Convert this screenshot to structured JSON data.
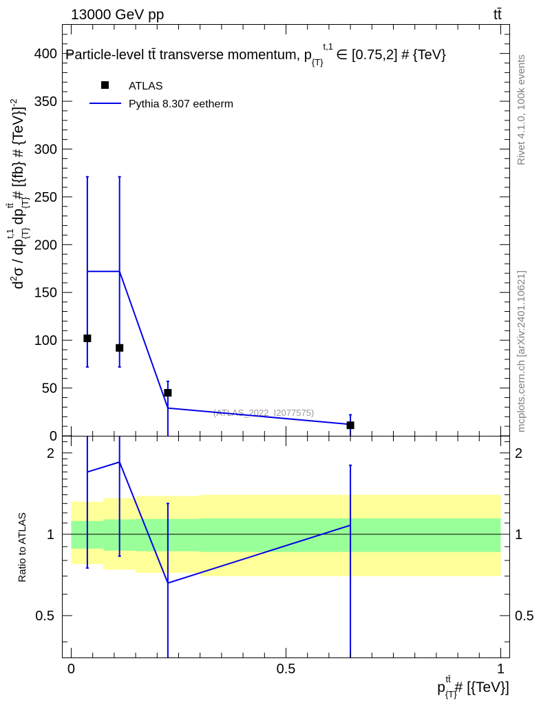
{
  "header": {
    "energy": "13000 GeV pp",
    "process": "tt̄"
  },
  "side": {
    "rivet": "Rivet 4.1.0,  100k events",
    "source": "mcplots.cern.ch [arXiv:2401.10621]"
  },
  "colors": {
    "mc": "#0000e6",
    "data": "#000000",
    "band_inner": "#99ff99",
    "band_outer": "#ffff99"
  },
  "chart_data": [
    {
      "type": "scatter",
      "title": "Particle-level tt̄ transverse momentum, p_{T}^{t,1} ∈ [0.75,2] # {TeV}",
      "title_main": "Particle-level tt̄ transverse momentum, p",
      "title_sub": "{T}",
      "title_sup": "t,1",
      "title_tail": "∈ [0.75,2] # {TeV}",
      "ylabel": "d²σ / dp_{T}^{t,1} dp_{T}^{tt̄} # [{fb} # {TeV}⁻²]",
      "ylabel_parts": {
        "d": "d",
        "two": "2",
        "sigma_dp": "σ / dp",
        "sub1": "{T}",
        "sup1": "t,1",
        "dp": " dp",
        "sub2": "{T}",
        "sup2": "tt̄",
        "tail": " # [{fb} # {TeV}]",
        "exp": "-2"
      },
      "xlim": [
        -0.02,
        1.02
      ],
      "ylim": [
        0,
        430
      ],
      "yticks": [
        "0",
        "50",
        "100",
        "150",
        "200",
        "250",
        "300",
        "350",
        "400"
      ],
      "yticks_values": [
        0,
        50,
        100,
        150,
        200,
        250,
        300,
        350,
        400
      ],
      "watermark": "(ATLAS_2022_I2077575)",
      "legend": [
        {
          "label": "ATLAS",
          "marker": "square"
        },
        {
          "label": "Pythia 8.307 eetherm",
          "marker": "line"
        }
      ],
      "series": [
        {
          "name": "ATLAS",
          "x": [
            0.0375,
            0.1125,
            0.225,
            0.65
          ],
          "y": [
            102,
            92,
            45,
            11
          ],
          "err_up": [
            169,
            179,
            12,
            10
          ],
          "err_down": [
            30,
            20,
            45,
            11
          ]
        },
        {
          "name": "Pythia 8.307 eetherm",
          "x": [
            0.0375,
            0.1125,
            0.225,
            0.65
          ],
          "y": [
            172,
            172,
            29,
            12
          ],
          "err_up": [
            99,
            99,
            28,
            10
          ],
          "err_down": [
            100,
            100,
            29,
            12
          ]
        }
      ]
    },
    {
      "type": "line",
      "ylabel": "Ratio to ATLAS",
      "xlabel": "p_{T}^{tt̄} # [{TeV}]",
      "xlabel_parts": {
        "p": "p",
        "sub": "{T}",
        "sup": "tt̄",
        "tail": " # [{TeV}]"
      },
      "xlim": [
        -0.02,
        1.02
      ],
      "ylim": [
        0.35,
        2.3
      ],
      "xticks": [
        "0",
        "0.5",
        "1"
      ],
      "xticks_values": [
        0,
        0.5,
        1
      ],
      "yticks": [
        "0.5",
        "1",
        "2"
      ],
      "yticks_values": [
        0.5,
        1,
        2
      ],
      "bands": {
        "x_edges": [
          0,
          0.075,
          0.15,
          0.3,
          1.0
        ],
        "inner_lo": [
          0.885,
          0.87,
          0.865,
          0.86
        ],
        "inner_hi": [
          1.12,
          1.135,
          1.14,
          1.145
        ],
        "outer_lo": [
          0.775,
          0.74,
          0.72,
          0.7
        ],
        "outer_hi": [
          1.32,
          1.36,
          1.385,
          1.4
        ]
      },
      "series": [
        {
          "name": "Pythia 8.307 eetherm",
          "x": [
            0.0375,
            0.1125,
            0.225,
            0.65
          ],
          "y": [
            1.7,
            1.85,
            0.66,
            1.08
          ],
          "err_up": [
            0.8,
            0.6,
            0.64,
            0.72
          ],
          "err_down": [
            0.95,
            1.02,
            0.4,
            0.8
          ]
        }
      ]
    }
  ]
}
